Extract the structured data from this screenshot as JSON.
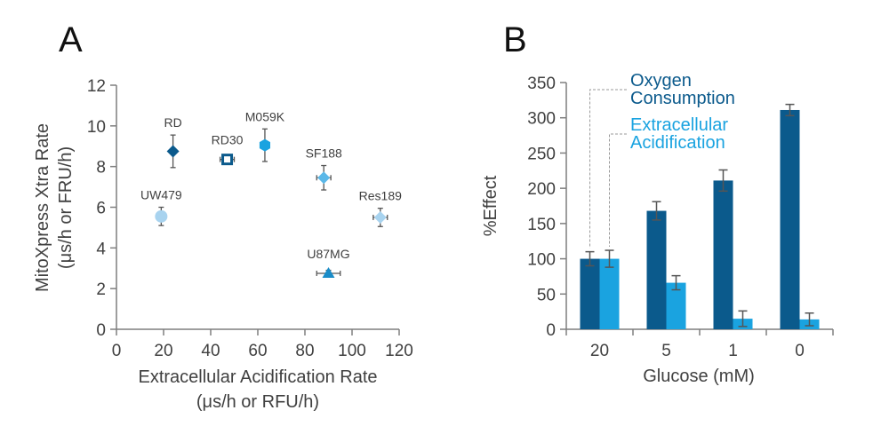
{
  "colors": {
    "axis": "#7f7f7f",
    "text": "#404040",
    "dark_blue": "#0b5a8c",
    "light_blue": "#1aa3e0",
    "pale_blue": "#a8d3ef",
    "error": "#555555"
  },
  "chart_data": [
    {
      "panel": "A",
      "type": "scatter",
      "xlabel": [
        "Extracellular Acidification Rate",
        "(μs/h or RFU/h)"
      ],
      "ylabel": [
        "MitoXpress Xtra Rate",
        "(μs/h or FRU/h)"
      ],
      "xlim": [
        0,
        120
      ],
      "ylim": [
        0,
        12
      ],
      "xticks": [
        "0",
        "20",
        "40",
        "60",
        "80",
        "100",
        "120"
      ],
      "yticks": [
        "0",
        "2",
        "4",
        "6",
        "8",
        "10",
        "12"
      ],
      "grid": false,
      "points": [
        {
          "label": "RD",
          "x": 24,
          "y": 8.75,
          "xerr": 1,
          "yerr": 0.8,
          "color": "#0b5a8c",
          "marker": "diamond"
        },
        {
          "label": "RD30",
          "x": 47,
          "y": 8.35,
          "xerr": 3,
          "yerr": 0.2,
          "color": "#0b5a8c",
          "marker": "open-square"
        },
        {
          "label": "M059K",
          "x": 63,
          "y": 9.05,
          "xerr": 1,
          "yerr": 0.8,
          "color": "#1aa3e0",
          "marker": "hexagon"
        },
        {
          "label": "SF188",
          "x": 88,
          "y": 7.45,
          "xerr": 3,
          "yerr": 0.6,
          "color": "#5bb8e8",
          "marker": "diamond"
        },
        {
          "label": "UW479",
          "x": 19,
          "y": 5.55,
          "xerr": 1,
          "yerr": 0.45,
          "color": "#a8d3ef",
          "marker": "circle"
        },
        {
          "label": "Res189",
          "x": 112,
          "y": 5.5,
          "xerr": 3,
          "yerr": 0.45,
          "color": "#a8d3ef",
          "marker": "diamond"
        },
        {
          "label": "U87MG",
          "x": 90,
          "y": 2.75,
          "xerr": 5,
          "yerr": 0.15,
          "color": "#1a8cc8",
          "marker": "triangle"
        }
      ]
    },
    {
      "panel": "B",
      "type": "bar",
      "xlabel": "Glucose (mM)",
      "ylabel": "%Effect",
      "categories": [
        "20",
        "5",
        "1",
        "0"
      ],
      "ylim": [
        0,
        350
      ],
      "yticks": [
        "0",
        "50",
        "100",
        "150",
        "200",
        "250",
        "300",
        "350"
      ],
      "grid": false,
      "legend_position": "top-right",
      "series": [
        {
          "name": [
            "Oxygen",
            "Consumption"
          ],
          "color": "#0b5a8c",
          "values": [
            100,
            168,
            211,
            311
          ],
          "errors": [
            10,
            13,
            15,
            8
          ]
        },
        {
          "name": [
            "Extracellular",
            "Acidification"
          ],
          "color": "#1aa3e0",
          "values": [
            100,
            66,
            15,
            14
          ],
          "errors": [
            12,
            10,
            11,
            9
          ]
        }
      ]
    }
  ]
}
